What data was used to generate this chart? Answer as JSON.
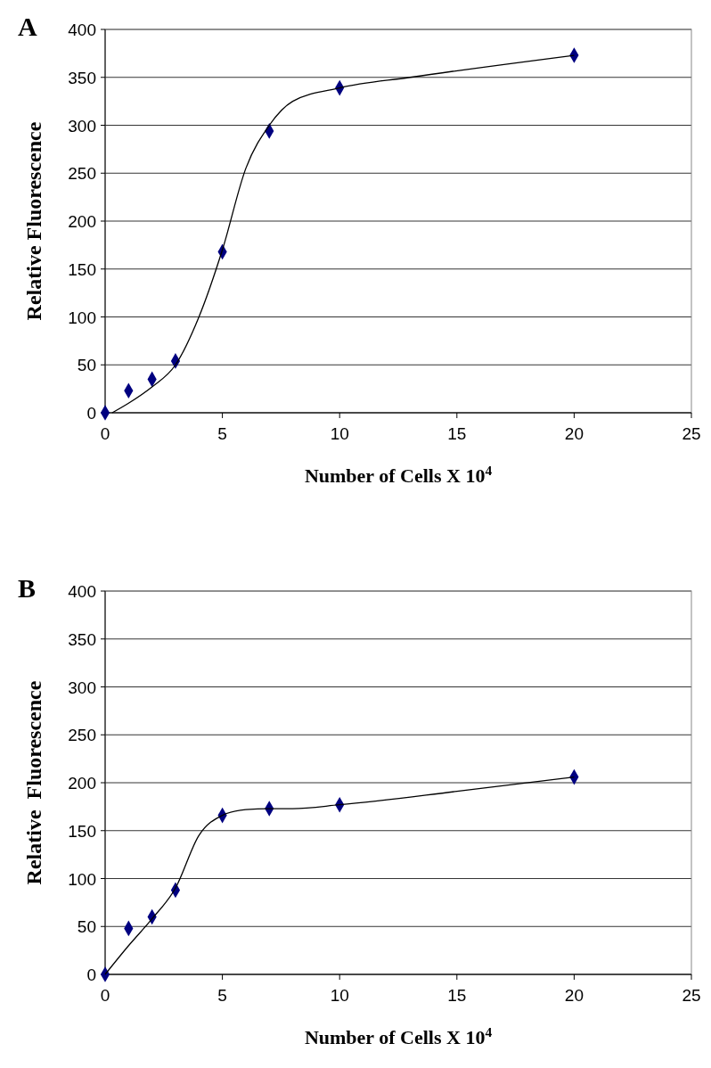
{
  "chart_data": [
    {
      "type": "scatter",
      "title": "A",
      "xlabel": "Number of Cells X 10$^{4}$",
      "ylabel": "Relative Fluorescence",
      "xlim": [
        0,
        25
      ],
      "xticks": [
        0,
        5,
        10,
        15,
        20,
        25
      ],
      "ylim": [
        0,
        400
      ],
      "yticks": [
        0,
        50,
        100,
        150,
        200,
        250,
        300,
        350,
        400
      ],
      "grid": "y",
      "marker": "diamond",
      "series": [
        {
          "color": "#000080",
          "x": [
            0,
            1,
            2,
            3,
            5,
            7,
            10,
            20
          ],
          "values": [
            0,
            23,
            35,
            54,
            168,
            294,
            339,
            373
          ]
        },
        {
          "type": "line",
          "marker": "none",
          "line_style": "solid",
          "color": "#000000",
          "x": [
            0.3,
            1,
            2,
            3,
            4,
            5,
            6,
            7,
            8,
            10,
            13,
            20
          ],
          "values": [
            0,
            10,
            27,
            50,
            100,
            170,
            255,
            300,
            325,
            339,
            350,
            373
          ]
        }
      ]
    },
    {
      "type": "scatter",
      "title": "B",
      "xlabel": "Number of Cells X 10$^{4}$",
      "ylabel": "Relative  Fluorescence",
      "xlim": [
        0,
        25
      ],
      "xticks": [
        0,
        5,
        10,
        15,
        20,
        25
      ],
      "ylim": [
        0,
        400
      ],
      "yticks": [
        0,
        50,
        100,
        150,
        200,
        250,
        300,
        350,
        400
      ],
      "grid": "y",
      "marker": "diamond",
      "series": [
        {
          "color": "#000080",
          "x": [
            0,
            1,
            2,
            3,
            5,
            7,
            10,
            20
          ],
          "values": [
            0,
            48,
            60,
            88,
            166,
            173,
            177,
            206
          ]
        },
        {
          "type": "line",
          "marker": "none",
          "line_style": "solid",
          "color": "#000000",
          "x": [
            0,
            1,
            2,
            3,
            4,
            5,
            6,
            7,
            8,
            10,
            15,
            20
          ],
          "values": [
            0,
            30,
            58,
            90,
            145,
            166,
            172,
            173,
            173,
            177,
            191,
            206
          ]
        }
      ]
    }
  ]
}
